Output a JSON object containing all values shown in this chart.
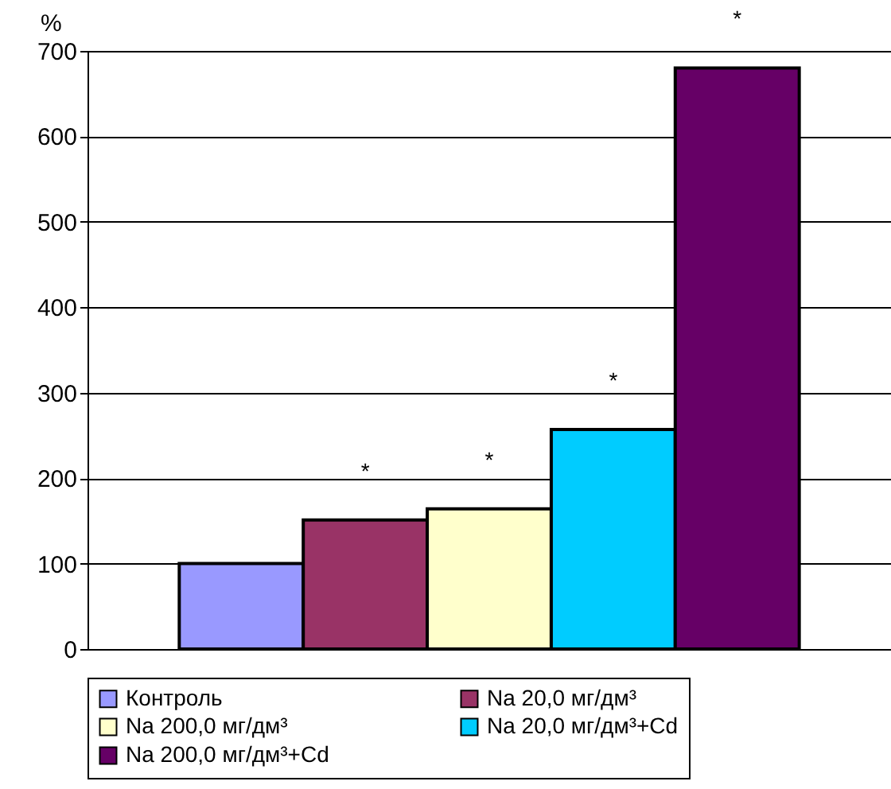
{
  "chart_data": {
    "type": "bar",
    "ylabel": "%",
    "categories": [
      null
    ],
    "series": [
      {
        "name": "Контроль",
        "color": "#9999ff",
        "values": [
          100
        ],
        "value_labels": [
          null
        ]
      },
      {
        "name": "Na 20,0 мг/дм³",
        "color": "#993366",
        "values": [
          151
        ],
        "value_labels": [
          "*"
        ]
      },
      {
        "name": "Na 200,0 мг/дм³",
        "color": "#ffffcc",
        "values": [
          164
        ],
        "value_labels": [
          "*"
        ]
      },
      {
        "name": "Na 20,0 мг/дм³+Cd",
        "color": "#00ccff",
        "values": [
          257
        ],
        "value_labels": [
          "*"
        ]
      },
      {
        "name": "Na 200,0 мг/дм³+Cd",
        "color": "#660066",
        "values": [
          680
        ],
        "value_labels": [
          "*"
        ]
      }
    ],
    "ylim": [
      0,
      700
    ],
    "yticks": [
      0,
      100,
      200,
      300,
      400,
      500,
      600,
      700
    ],
    "grid": "y",
    "legend": "bottom",
    "tick_labels": "y"
  }
}
